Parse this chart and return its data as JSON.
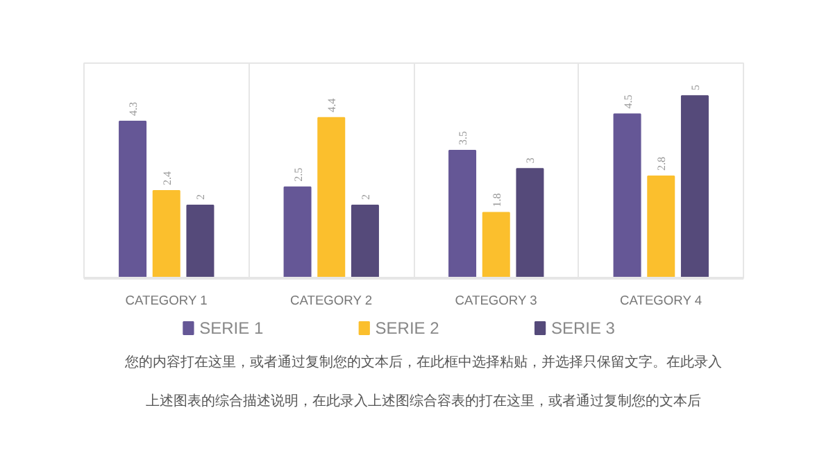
{
  "chart_data": {
    "type": "bar",
    "categories": [
      "CATEGORY 1",
      "CATEGORY 2",
      "CATEGORY 3",
      "CATEGORY 4"
    ],
    "series": [
      {
        "name": "SERIE 1",
        "color": "#655796",
        "values": [
          4.3,
          2.5,
          3.5,
          4.5
        ]
      },
      {
        "name": "SERIE 2",
        "color": "#fbbf2d",
        "values": [
          2.4,
          4.4,
          1.8,
          2.8
        ]
      },
      {
        "name": "SERIE 3",
        "color": "#554a7a",
        "values": [
          2,
          2,
          3,
          5
        ]
      }
    ],
    "data_labels": true,
    "grid": "x",
    "legend": "bottom",
    "annotations": [
      "您的内容打在这里，或者通过复制您的文本后，在此框中选择粘贴，并选择只保留文字。在此录入",
      "上述图表的综合描述说明，在此录入上述图综合容表的打在这里，或者通过复制您的文本后"
    ]
  }
}
